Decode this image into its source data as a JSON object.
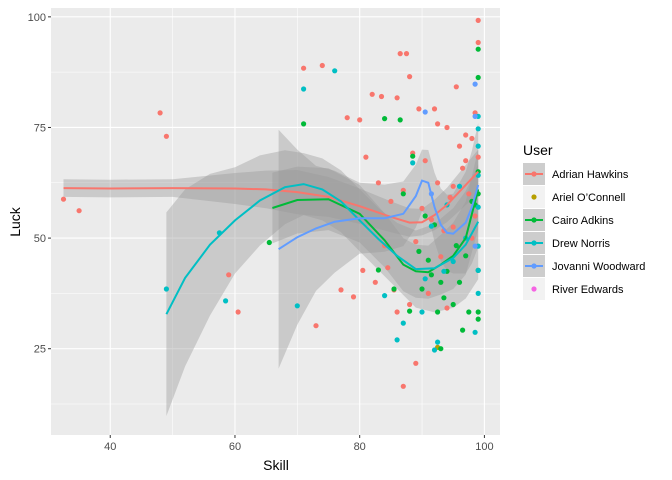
{
  "chart_data": {
    "type": "scatter",
    "title": "",
    "xlabel": "Skill",
    "ylabel": "Luck",
    "xlim": [
      30.5,
      102.5
    ],
    "ylim": [
      5.5,
      102
    ],
    "xticks": [
      40,
      60,
      80,
      100
    ],
    "yticks": [
      25,
      50,
      75,
      100
    ],
    "grid": true,
    "legend": {
      "title": "User",
      "position": "right"
    },
    "band_color": "#999999",
    "panel_color": "#ebebeb",
    "series": [
      {
        "name": "Adrian Hawkins",
        "color": "#F8766D",
        "points": [
          [
            32.5,
            58.8
          ],
          [
            35,
            56.2
          ],
          [
            48,
            78.3
          ],
          [
            49,
            73
          ],
          [
            59,
            41.7
          ],
          [
            60.5,
            33.3
          ],
          [
            71,
            88.4
          ],
          [
            73,
            30.2
          ],
          [
            74,
            89
          ],
          [
            77,
            38.3
          ],
          [
            78,
            77.2
          ],
          [
            79,
            36.7
          ],
          [
            80,
            76.7
          ],
          [
            80.5,
            42.7
          ],
          [
            81,
            68.3
          ],
          [
            82,
            82.5
          ],
          [
            82.5,
            40
          ],
          [
            83,
            62.5
          ],
          [
            83.5,
            82
          ],
          [
            84,
            48.3
          ],
          [
            84.5,
            43.3
          ],
          [
            85,
            58.3
          ],
          [
            85.5,
            38.3
          ],
          [
            86,
            33.3
          ],
          [
            86,
            81.7
          ],
          [
            86.5,
            91.7
          ],
          [
            87,
            16.5
          ],
          [
            87,
            60.8
          ],
          [
            87.5,
            91.7
          ],
          [
            88,
            35
          ],
          [
            88,
            86.5
          ],
          [
            88.5,
            69.2
          ],
          [
            89,
            21.7
          ],
          [
            89,
            49.2
          ],
          [
            89.5,
            79.2
          ],
          [
            90,
            56.7
          ],
          [
            90.5,
            67.5
          ],
          [
            91,
            37.5
          ],
          [
            91.5,
            54.2
          ],
          [
            92,
            79.2
          ],
          [
            92.5,
            75.8
          ],
          [
            92.5,
            62.5
          ],
          [
            93,
            45.8
          ],
          [
            93.5,
            51.7
          ],
          [
            94,
            75
          ],
          [
            94,
            34.2
          ],
          [
            94.5,
            59.2
          ],
          [
            95,
            61.7
          ],
          [
            95,
            52.5
          ],
          [
            95.5,
            84.2
          ],
          [
            96,
            70.8
          ],
          [
            96.5,
            65.8
          ],
          [
            97,
            67.5
          ],
          [
            97,
            73.3
          ],
          [
            97.5,
            60
          ],
          [
            98,
            50
          ],
          [
            98,
            72.5
          ],
          [
            98.5,
            78.3
          ],
          [
            98.5,
            55
          ],
          [
            99,
            99.2
          ],
          [
            99,
            94.2
          ],
          [
            99,
            68.3
          ]
        ],
        "fit": [
          [
            32.5,
            61.3
          ],
          [
            40,
            61.2
          ],
          [
            50,
            61.3
          ],
          [
            60,
            61.2
          ],
          [
            65,
            61
          ],
          [
            70,
            60.4
          ],
          [
            75,
            59.3
          ],
          [
            80,
            57.2
          ],
          [
            85,
            54.8
          ],
          [
            88,
            53.5
          ],
          [
            90,
            53.6
          ],
          [
            92,
            55.2
          ],
          [
            94,
            57.5
          ],
          [
            96,
            60.5
          ],
          [
            98,
            63.5
          ],
          [
            99,
            65
          ]
        ],
        "band": [
          [
            50,
            2
          ],
          [
            70,
            5
          ],
          [
            80,
            4
          ],
          [
            90,
            3
          ],
          [
            99,
            5
          ]
        ]
      },
      {
        "name": "Ariel O’Connell",
        "color": "#B79F00",
        "points": [
          [
            92.5,
            25.3
          ]
        ],
        "fit": [],
        "band": []
      },
      {
        "name": "Cairo Adkins",
        "color": "#00BA38",
        "points": [
          [
            65.5,
            49
          ],
          [
            71,
            75.8
          ],
          [
            83,
            42.8
          ],
          [
            84,
            77
          ],
          [
            85.5,
            38.5
          ],
          [
            86.5,
            76.7
          ],
          [
            87,
            60
          ],
          [
            88,
            33.5
          ],
          [
            88.5,
            68.5
          ],
          [
            89.5,
            47
          ],
          [
            90,
            38.5
          ],
          [
            90.5,
            55
          ],
          [
            91,
            45
          ],
          [
            91.5,
            41.7
          ],
          [
            92,
            53
          ],
          [
            92.5,
            33.3
          ],
          [
            93,
            25
          ],
          [
            93,
            40
          ],
          [
            93.5,
            36.5
          ],
          [
            94,
            42.5
          ],
          [
            95,
            35
          ],
          [
            95.5,
            48.3
          ],
          [
            96,
            40
          ],
          [
            96.5,
            29.2
          ],
          [
            97,
            46
          ],
          [
            97.5,
            33.3
          ],
          [
            98,
            58.3
          ],
          [
            98.5,
            57.5
          ],
          [
            99,
            92.7
          ],
          [
            99,
            86.3
          ],
          [
            99,
            65
          ],
          [
            99,
            60
          ],
          [
            99,
            42.7
          ],
          [
            99,
            33.3
          ],
          [
            99,
            31.7
          ]
        ],
        "fit": [
          [
            66,
            56.8
          ],
          [
            70,
            58.6
          ],
          [
            75,
            58.8
          ],
          [
            80,
            55.5
          ],
          [
            84,
            49.5
          ],
          [
            87,
            44
          ],
          [
            89,
            42.5
          ],
          [
            91,
            42.3
          ],
          [
            93,
            44
          ],
          [
            95,
            46
          ],
          [
            97,
            50
          ],
          [
            99,
            61
          ]
        ],
        "band": [
          [
            66,
            8
          ],
          [
            75,
            7
          ],
          [
            85,
            6
          ],
          [
            91,
            6
          ],
          [
            99,
            9
          ]
        ]
      },
      {
        "name": "Drew Norris",
        "color": "#00BFC4",
        "points": [
          [
            49,
            38.5
          ],
          [
            57.5,
            51.2
          ],
          [
            58.5,
            35.8
          ],
          [
            70,
            34.7
          ],
          [
            71,
            83.7
          ],
          [
            76,
            87.8
          ],
          [
            84,
            37
          ],
          [
            86,
            27
          ],
          [
            87,
            30.8
          ],
          [
            88.5,
            67
          ],
          [
            90,
            33.3
          ],
          [
            90.5,
            40.8
          ],
          [
            91.5,
            52.7
          ],
          [
            92,
            24.7
          ],
          [
            92.5,
            26.5
          ],
          [
            93.5,
            42.5
          ],
          [
            94,
            57.5
          ],
          [
            95,
            44.7
          ],
          [
            96,
            61.7
          ],
          [
            97,
            50
          ],
          [
            98.5,
            28.7
          ],
          [
            99,
            77.5
          ],
          [
            99,
            74.7
          ],
          [
            99,
            70.8
          ],
          [
            99,
            64.2
          ],
          [
            99,
            57
          ],
          [
            99,
            48.2
          ],
          [
            99,
            42.7
          ],
          [
            99,
            37.5
          ]
        ],
        "fit": [
          [
            49,
            32.8
          ],
          [
            52,
            41
          ],
          [
            56,
            48.5
          ],
          [
            60,
            54
          ],
          [
            64,
            58.5
          ],
          [
            68,
            61.5
          ],
          [
            71,
            62.2
          ],
          [
            74,
            61
          ],
          [
            77,
            58.3
          ],
          [
            80,
            54
          ],
          [
            83,
            49.8
          ],
          [
            86,
            46
          ],
          [
            89,
            43
          ],
          [
            92,
            43.2
          ],
          [
            95,
            45.5
          ],
          [
            97,
            48.5
          ],
          [
            99,
            53.7
          ]
        ],
        "band": [
          [
            49,
            23
          ],
          [
            60,
            12
          ],
          [
            71,
            7
          ],
          [
            85,
            7
          ],
          [
            99,
            13
          ]
        ]
      },
      {
        "name": "Jovanni Woodward",
        "color": "#619CFF",
        "points": [
          [
            90.5,
            78.5
          ],
          [
            91.5,
            60
          ],
          [
            98.5,
            84.8
          ],
          [
            98.5,
            77.5
          ],
          [
            98.5,
            48.2
          ]
        ],
        "fit": [
          [
            67,
            47.5
          ],
          [
            70,
            50.2
          ],
          [
            73,
            52.2
          ],
          [
            76,
            53.7
          ],
          [
            80,
            54.5
          ],
          [
            84,
            54.5
          ],
          [
            87,
            55.5
          ],
          [
            89,
            59.5
          ],
          [
            90,
            63
          ],
          [
            91,
            62.5
          ],
          [
            92,
            57
          ],
          [
            93,
            53
          ],
          [
            94,
            51.2
          ],
          [
            95,
            51
          ],
          [
            97,
            53.5
          ],
          [
            98,
            57
          ],
          [
            99,
            62
          ]
        ],
        "band": [
          [
            67,
            27
          ],
          [
            72,
            15
          ],
          [
            80,
            8
          ],
          [
            90,
            7
          ],
          [
            95,
            9
          ],
          [
            99,
            14
          ]
        ]
      },
      {
        "name": "River Edwards",
        "color": "#F564E3",
        "points": [],
        "fit": [],
        "band": []
      }
    ]
  }
}
